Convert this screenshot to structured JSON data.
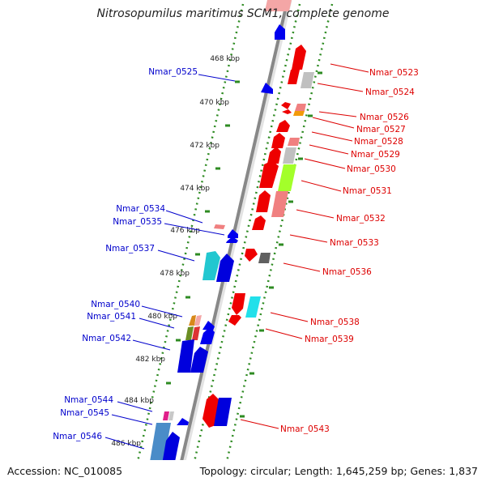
{
  "title": "Nitrosopumilus maritimus SCM1, complete genome",
  "footer": {
    "accession": "Accession: NC_010085",
    "topology": "Topology: circular; Length: 1,645,259 bp; Genes: 1,837"
  },
  "colors": {
    "left_gene_label": "#0000cc",
    "right_gene_label": "#dd0000",
    "ruler": "#2e8b22",
    "backbone": "#8a8a8a"
  },
  "scale_labels": [
    "468 kbp",
    "470 kbp",
    "472 kbp",
    "474 kbp",
    "476 kbp",
    "478 kbp",
    "480 kbp",
    "482 kbp",
    "484 kbp",
    "486 kbp"
  ],
  "left_genes": [
    "Nmar_0525",
    "Nmar_0534",
    "Nmar_0535",
    "Nmar_0537",
    "Nmar_0540",
    "Nmar_0541",
    "Nmar_0542",
    "Nmar_0544",
    "Nmar_0545",
    "Nmar_0546"
  ],
  "right_genes": [
    "Nmar_0523",
    "Nmar_0524",
    "Nmar_0526",
    "Nmar_0527",
    "Nmar_0528",
    "Nmar_0529",
    "Nmar_0530",
    "Nmar_0531",
    "Nmar_0532",
    "Nmar_0533",
    "Nmar_0536",
    "Nmar_0538",
    "Nmar_0539",
    "Nmar_0543"
  ]
}
